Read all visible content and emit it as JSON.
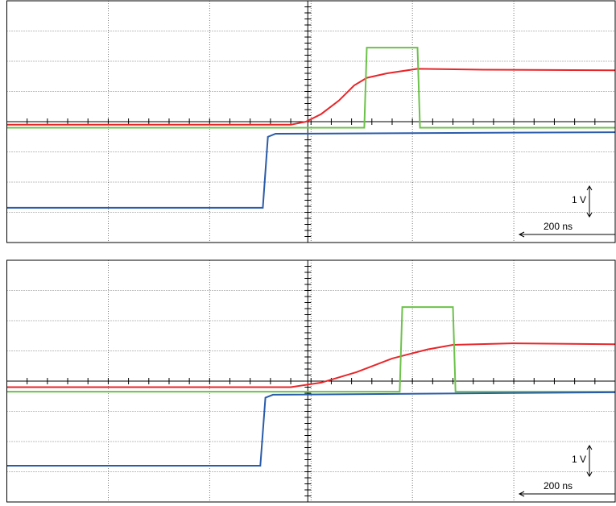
{
  "chart_data": [
    {
      "type": "line",
      "ylim": [
        -4,
        4
      ],
      "xlim": [
        0,
        1200
      ],
      "xticks": [
        0,
        200,
        400,
        600,
        800,
        1000,
        1200
      ],
      "yticks": [
        -4,
        -3,
        -2,
        -1,
        0,
        1,
        2,
        3,
        4
      ],
      "grid": true,
      "y_scale_label": "1 V",
      "x_scale_label": "200 ns",
      "series": [
        {
          "color": "#e8262a",
          "x": [
            0,
            560,
            590,
            620,
            655,
            685,
            710,
            750,
            810,
            940,
            1200
          ],
          "values": [
            -0.1,
            -0.1,
            0,
            0.25,
            0.7,
            1.2,
            1.45,
            1.6,
            1.75,
            1.72,
            1.7
          ]
        },
        {
          "color": "#6cc24a",
          "x": [
            0,
            705,
            710,
            810,
            815,
            1200
          ],
          "values": [
            -0.2,
            -0.2,
            2.45,
            2.45,
            -0.2,
            -0.2
          ]
        },
        {
          "color": "#2a5caa",
          "x": [
            0,
            505,
            515,
            530,
            1200
          ],
          "values": [
            -2.85,
            -2.85,
            -0.5,
            -0.4,
            -0.35
          ]
        }
      ]
    },
    {
      "type": "line",
      "ylim": [
        -4,
        4
      ],
      "xlim": [
        0,
        1200
      ],
      "xticks": [
        0,
        200,
        400,
        600,
        800,
        1000,
        1200
      ],
      "yticks": [
        -4,
        -3,
        -2,
        -1,
        0,
        1,
        2,
        3,
        4
      ],
      "grid": true,
      "y_scale_label": "1 V",
      "x_scale_label": "200 ns",
      "series": [
        {
          "color": "#e8262a",
          "x": [
            0,
            560,
            620,
            690,
            760,
            830,
            880,
            1000,
            1200
          ],
          "values": [
            -0.2,
            -0.2,
            -0.05,
            0.3,
            0.75,
            1.05,
            1.2,
            1.25,
            1.22
          ]
        },
        {
          "color": "#6cc24a",
          "x": [
            0,
            775,
            780,
            880,
            885,
            1200
          ],
          "values": [
            -0.35,
            -0.35,
            2.45,
            2.45,
            -0.35,
            -0.35
          ]
        },
        {
          "color": "#2a5caa",
          "x": [
            0,
            500,
            510,
            525,
            1200
          ],
          "values": [
            -2.8,
            -2.8,
            -0.55,
            -0.45,
            -0.37
          ]
        }
      ]
    }
  ]
}
